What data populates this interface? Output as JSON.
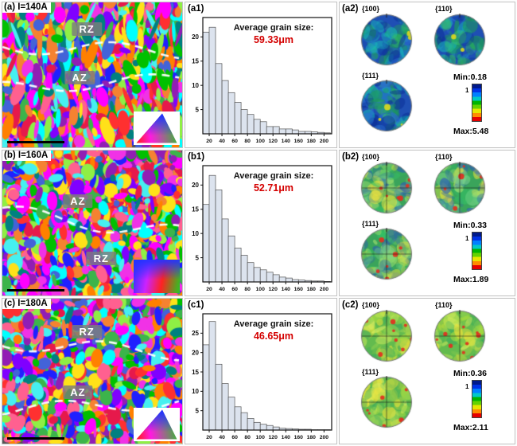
{
  "colors": {
    "accent_red": "#d40000",
    "histogram_bar_fill": "#dce3ee",
    "histogram_bar_stroke": "#555555"
  },
  "colorbar_colors": [
    "#001a8c",
    "#0032e6",
    "#0080ff",
    "#00c8c8",
    "#00b400",
    "#64d200",
    "#e6e600",
    "#ff8c00",
    "#e60000"
  ],
  "ebsd_palette": [
    "#e6194b",
    "#3cb44b",
    "#4363d8",
    "#ffe119",
    "#f58231",
    "#911eb4",
    "#46f0f0",
    "#f032e6",
    "#8fef45",
    "#008080",
    "#ff3030",
    "#2020ff",
    "#00c000",
    "#ff00ff",
    "#00ffff",
    "#ff8000",
    "#8000ff",
    "#ff6090"
  ],
  "rows": [
    {
      "map_label": "(a) I=140A",
      "hist_label": "(a1)",
      "pole_label": "(a2)",
      "avg_title": "Average grain size:",
      "avg_value": "59.33μm",
      "pole_titles": {
        "p100": "{100}",
        "p110": "{110}",
        "p111": "{111}"
      },
      "colorbar_min": "Min:0.18",
      "colorbar_max": "Max:5.48",
      "colorbar_tick": "1",
      "zones": [
        {
          "label": "RZ",
          "x": 0.47,
          "y": 0.14
        },
        {
          "label": "AZ",
          "x": 0.43,
          "y": 0.47
        }
      ],
      "dashes": [
        {
          "y": 0.32,
          "amp": 9,
          "slope": 0.03
        },
        {
          "y": 0.56,
          "amp": 8,
          "slope": -0.05
        }
      ],
      "pole_style": {
        "base": "#1f4fb4",
        "blobs": [
          "#1d9e56",
          "#17b8b8",
          "#0b2f96",
          "#35c065",
          "#2a6fd0"
        ],
        "spots": "#d8d820",
        "spot_count": 3,
        "cross": false
      }
    },
    {
      "map_label": "(b) I=160A",
      "hist_label": "(b1)",
      "pole_label": "(b2)",
      "avg_title": "Average grain size:",
      "avg_value": "52.71μm",
      "pole_titles": {
        "p100": "{100}",
        "p110": "{110}",
        "p111": "{111}"
      },
      "colorbar_min": "Min:0.33",
      "colorbar_max": "Max:1.89",
      "colorbar_tick": "1",
      "zones": [
        {
          "label": "AZ",
          "x": 0.42,
          "y": 0.3
        },
        {
          "label": "RZ",
          "x": 0.55,
          "y": 0.7
        }
      ],
      "dashes": [
        {
          "y": 0.5,
          "amp": 10,
          "slope": 0.12
        }
      ],
      "pole_style": {
        "base": "#3aa45b",
        "blobs": [
          "#79d489",
          "#e8e23e",
          "#2a58b8",
          "#9fe070",
          "#35c065"
        ],
        "spots": "#e03020",
        "spot_count": 7,
        "cross": true
      }
    },
    {
      "map_label": "(c) I=180A",
      "hist_label": "(c1)",
      "pole_label": "(c2)",
      "avg_title": "Average grain size:",
      "avg_value": "46.65μm",
      "pole_titles": {
        "p100": "{100}",
        "p110": "{110}",
        "p111": "{111}"
      },
      "colorbar_min": "Min:0.36",
      "colorbar_max": "Max:2.11",
      "colorbar_tick": "1",
      "zones": [
        {
          "label": "RZ",
          "x": 0.47,
          "y": 0.18
        },
        {
          "label": "AZ",
          "x": 0.42,
          "y": 0.6
        }
      ],
      "dashes": [
        {
          "y": 0.34,
          "amp": 9,
          "slope": 0.06
        },
        {
          "y": 0.74,
          "amp": 8,
          "slope": -0.04
        }
      ],
      "pole_style": {
        "base": "#63bb4e",
        "blobs": [
          "#a8dc3e",
          "#efe23a",
          "#35a85f",
          "#d8ee60",
          "#8fd050"
        ],
        "spots": "#e03020",
        "spot_count": 10,
        "cross": true
      }
    }
  ],
  "chart_data": [
    {
      "type": "bar",
      "title": "Average grain size: 59.33μm",
      "xlabel": "",
      "ylabel": "",
      "bin_start": 10,
      "bin_width": 10,
      "xlim": [
        10,
        212
      ],
      "ylim": [
        0,
        24
      ],
      "xticks": [
        20,
        40,
        60,
        80,
        100,
        120,
        140,
        160,
        180,
        200
      ],
      "yticks": [
        5,
        10,
        15,
        20
      ],
      "values": [
        21,
        22,
        14.5,
        11,
        8.5,
        6.5,
        5,
        4,
        3,
        2.5,
        1.5,
        1.5,
        1,
        1,
        0.8,
        0.5,
        0.5,
        0.4,
        0.3,
        0.2
      ]
    },
    {
      "type": "bar",
      "title": "Average grain size: 52.71μm",
      "xlabel": "",
      "ylabel": "",
      "bin_start": 10,
      "bin_width": 10,
      "xlim": [
        10,
        212
      ],
      "ylim": [
        0,
        24
      ],
      "xticks": [
        20,
        40,
        60,
        80,
        100,
        120,
        140,
        160,
        180,
        200
      ],
      "yticks": [
        5,
        10,
        15,
        20
      ],
      "values": [
        16,
        22,
        19,
        13,
        9.5,
        7,
        5.5,
        4,
        3,
        2.5,
        2,
        1.5,
        1,
        0.8,
        0.5,
        0.4,
        0.3,
        0.2,
        0.2,
        0.1
      ]
    },
    {
      "type": "bar",
      "title": "Average grain size: 46.65μm",
      "xlabel": "",
      "ylabel": "",
      "bin_start": 10,
      "bin_width": 10,
      "xlim": [
        10,
        212
      ],
      "ylim": [
        0,
        30
      ],
      "xticks": [
        20,
        40,
        60,
        80,
        100,
        120,
        140,
        160,
        180,
        200
      ],
      "yticks": [
        5,
        10,
        15,
        20,
        25
      ],
      "values": [
        22,
        28,
        17,
        12,
        8.5,
        6,
        4.5,
        3,
        2,
        1.5,
        1.2,
        0.8,
        0.5,
        0.4,
        0.3,
        0.2,
        0.2,
        0.1,
        0.1,
        0.1
      ]
    }
  ]
}
